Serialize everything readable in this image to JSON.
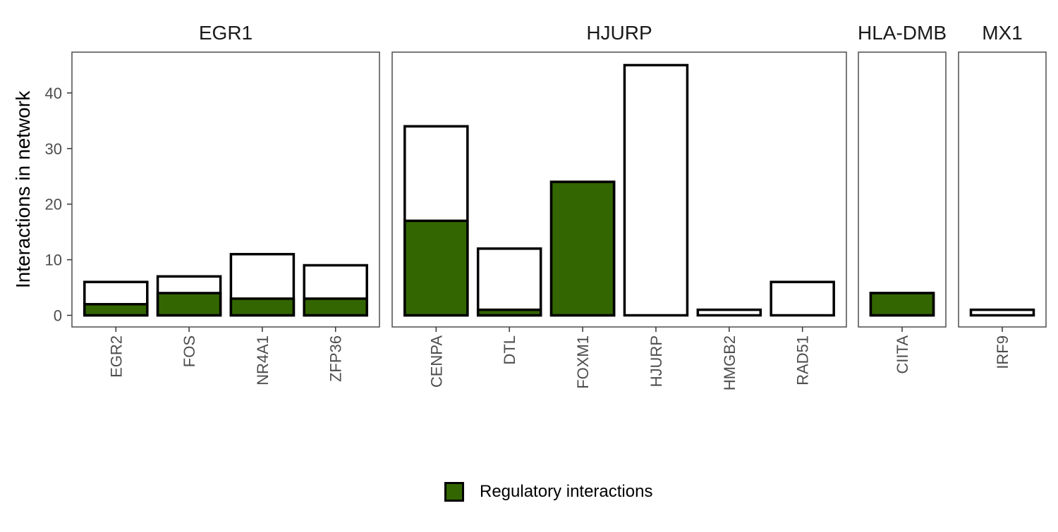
{
  "chart_data": {
    "type": "bar",
    "ylabel": "Interactions in network",
    "ylim": [
      0,
      45
    ],
    "yticks": [
      0,
      10,
      20,
      30,
      40
    ],
    "grid": false,
    "legend_position": "bottom",
    "legend": {
      "label": "Regulatory interactions",
      "color": "#336600"
    },
    "series": [
      {
        "name": "Interactions in network",
        "fill": "#ffffff"
      },
      {
        "name": "Regulatory interactions",
        "fill": "#336600"
      }
    ],
    "facets": [
      {
        "label": "EGR1",
        "categories": [
          "EGR2",
          "FOS",
          "NR4A1",
          "ZFP36"
        ],
        "total": [
          6,
          7,
          11,
          9
        ],
        "regulatory": [
          2,
          4,
          3,
          3
        ]
      },
      {
        "label": "HJURP",
        "categories": [
          "CENPA",
          "DTL",
          "FOXM1",
          "HJURP",
          "HMGB2",
          "RAD51"
        ],
        "total": [
          34,
          12,
          24,
          45,
          1,
          6
        ],
        "regulatory": [
          17,
          1,
          24,
          0,
          0,
          0
        ]
      },
      {
        "label": "HLA-DMB",
        "categories": [
          "CIITA"
        ],
        "total": [
          4
        ],
        "regulatory": [
          4
        ]
      },
      {
        "label": "MX1",
        "categories": [
          "IRF9"
        ],
        "total": [
          1
        ],
        "regulatory": [
          0
        ]
      }
    ]
  },
  "colors": {
    "regulatory": "#336600",
    "outline": "#000000",
    "panel_border": "#4d4d4d"
  }
}
